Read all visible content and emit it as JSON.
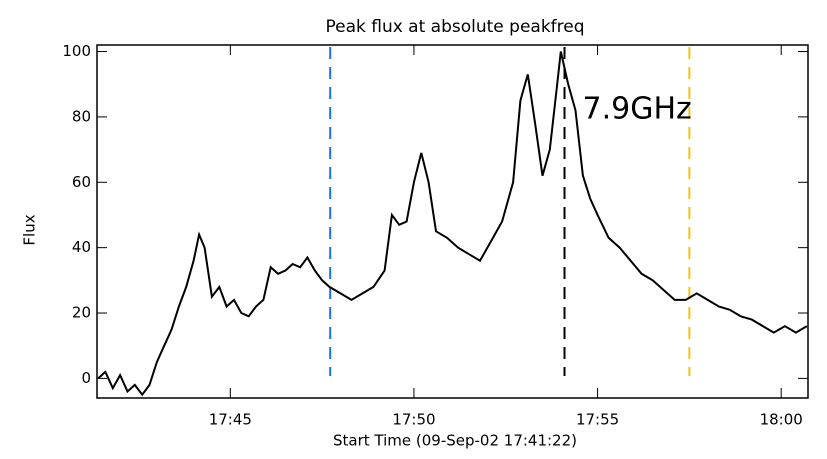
{
  "chart_data": {
    "type": "line",
    "title": "Peak flux at absolute peakfreq",
    "x_label": "Start Time (09-Sep-02 17:41:22)",
    "y_label": "Flux",
    "annotation": "7.9GHz",
    "xlim": [
      41.37,
      60.73
    ],
    "ylim": [
      -6,
      102
    ],
    "xticks": [
      {
        "value": 45,
        "label": "17:45"
      },
      {
        "value": 50,
        "label": "17:50"
      },
      {
        "value": 55,
        "label": "17:55"
      },
      {
        "value": 60,
        "label": "18:00"
      }
    ],
    "yticks": [
      0,
      20,
      40,
      60,
      80,
      100
    ],
    "vlines": [
      {
        "x": 47.72,
        "color": "#1f6fe0"
      },
      {
        "x": 54.1,
        "color": "#000000"
      },
      {
        "x": 57.5,
        "color": "#f2c413"
      }
    ],
    "series": [
      {
        "color": "#000000",
        "x": [
          41.4,
          41.6,
          41.8,
          42.0,
          42.2,
          42.4,
          42.6,
          42.8,
          43.0,
          43.2,
          43.4,
          43.6,
          43.8,
          44.0,
          44.15,
          44.3,
          44.5,
          44.7,
          44.9,
          45.1,
          45.3,
          45.5,
          45.7,
          45.9,
          46.1,
          46.3,
          46.5,
          46.7,
          46.9,
          47.1,
          47.3,
          47.5,
          47.7,
          48.0,
          48.3,
          48.6,
          48.9,
          49.2,
          49.4,
          49.6,
          49.8,
          50.0,
          50.2,
          50.4,
          50.6,
          50.9,
          51.2,
          51.5,
          51.8,
          52.1,
          52.4,
          52.7,
          52.9,
          53.1,
          53.3,
          53.5,
          53.7,
          53.9,
          54.0,
          54.2,
          54.4,
          54.6,
          54.8,
          55.0,
          55.3,
          55.6,
          55.9,
          56.2,
          56.5,
          56.8,
          57.1,
          57.4,
          57.7,
          58.0,
          58.3,
          58.6,
          58.9,
          59.2,
          59.5,
          59.8,
          60.1,
          60.4,
          60.7
        ],
        "values": [
          0,
          2,
          -3,
          1,
          -4,
          -2,
          -5,
          -2,
          5,
          10,
          15,
          22,
          28,
          36,
          44,
          40,
          25,
          28,
          22,
          24,
          20,
          19,
          22,
          24,
          34,
          32,
          33,
          35,
          34,
          37,
          33,
          30,
          28,
          26,
          24,
          26,
          28,
          33,
          50,
          47,
          48,
          60,
          69,
          60,
          45,
          43,
          40,
          38,
          36,
          42,
          48,
          60,
          85,
          93,
          78,
          62,
          70,
          90,
          100,
          90,
          82,
          62,
          55,
          50,
          43,
          40,
          36,
          32,
          30,
          27,
          24,
          24,
          26,
          24,
          22,
          21,
          19,
          18,
          16,
          14,
          16,
          14,
          16
        ]
      }
    ]
  }
}
